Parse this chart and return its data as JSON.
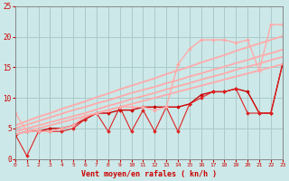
{
  "xlabel": "Vent moyen/en rafales ( kn/h )",
  "xlim": [
    0,
    23
  ],
  "ylim": [
    0,
    25
  ],
  "xticks": [
    0,
    1,
    2,
    3,
    4,
    5,
    6,
    7,
    8,
    9,
    10,
    11,
    12,
    13,
    14,
    15,
    16,
    17,
    18,
    19,
    20,
    21,
    22,
    23
  ],
  "yticks": [
    0,
    5,
    10,
    15,
    20,
    25
  ],
  "background_color": "#cce8e8",
  "grid_color": "#aacaca",
  "series": [
    {
      "x": [
        0,
        1,
        2,
        3,
        4,
        5,
        6,
        7,
        8,
        9,
        10,
        11,
        12,
        13,
        14,
        15,
        16,
        17,
        18,
        19,
        20,
        21,
        22,
        23
      ],
      "y": [
        4.0,
        4.5,
        4.5,
        5.0,
        5.0,
        5.5,
        6.5,
        7.5,
        7.5,
        8.0,
        8.0,
        8.5,
        8.5,
        8.5,
        8.5,
        9.0,
        10.5,
        11.0,
        11.0,
        11.5,
        11.0,
        7.5,
        7.5,
        15.5
      ],
      "color": "#cc0000",
      "lw": 1.0,
      "marker": "D",
      "ms": 1.8
    },
    {
      "x": [
        0,
        1,
        2,
        3,
        4,
        5,
        6,
        7,
        8,
        9,
        10,
        11,
        12,
        13,
        14,
        15,
        16,
        17,
        18,
        19,
        20,
        21,
        22,
        23
      ],
      "y": [
        4.0,
        0.5,
        4.5,
        4.5,
        4.5,
        5.0,
        6.5,
        7.5,
        4.5,
        8.5,
        4.5,
        8.0,
        4.5,
        8.5,
        4.5,
        9.0,
        10.0,
        11.0,
        11.0,
        11.5,
        7.5,
        7.5,
        7.5,
        15.5
      ],
      "color": "#dd2222",
      "lw": 0.8,
      "marker": "D",
      "ms": 1.8
    },
    {
      "x": [
        0,
        1,
        2,
        3,
        4,
        5,
        6,
        7,
        8,
        9,
        10,
        11,
        12,
        13,
        14,
        15,
        16,
        17,
        18,
        19,
        20,
        21,
        22,
        23
      ],
      "y": [
        4.0,
        4.5,
        5.0,
        5.5,
        6.0,
        6.5,
        7.0,
        7.5,
        8.0,
        8.5,
        9.0,
        9.5,
        10.0,
        10.5,
        11.0,
        11.5,
        12.0,
        12.5,
        13.0,
        13.5,
        14.0,
        14.5,
        15.0,
        15.5
      ],
      "color": "#ffaaaa",
      "lw": 1.3,
      "marker": null,
      "ms": 0
    },
    {
      "x": [
        0,
        1,
        2,
        3,
        4,
        5,
        6,
        7,
        8,
        9,
        10,
        11,
        12,
        13,
        14,
        15,
        16,
        17,
        18,
        19,
        20,
        21,
        22,
        23
      ],
      "y": [
        4.5,
        5.0,
        5.5,
        6.0,
        6.5,
        7.0,
        7.5,
        8.1,
        8.7,
        9.2,
        9.8,
        10.3,
        10.8,
        11.4,
        11.9,
        12.4,
        13.0,
        13.5,
        14.0,
        14.6,
        15.1,
        15.6,
        16.2,
        16.7
      ],
      "color": "#ffaaaa",
      "lw": 1.3,
      "marker": null,
      "ms": 0
    },
    {
      "x": [
        0,
        1,
        2,
        3,
        4,
        5,
        6,
        7,
        8,
        9,
        10,
        11,
        12,
        13,
        14,
        15,
        16,
        17,
        18,
        19,
        20,
        21,
        22,
        23
      ],
      "y": [
        5.0,
        5.6,
        6.2,
        6.8,
        7.4,
        8.0,
        8.5,
        9.1,
        9.6,
        10.2,
        10.8,
        11.3,
        11.8,
        12.4,
        12.9,
        13.5,
        14.0,
        14.6,
        15.1,
        15.7,
        16.2,
        16.8,
        17.3,
        17.9
      ],
      "color": "#ffaaaa",
      "lw": 1.3,
      "marker": null,
      "ms": 0
    },
    {
      "x": [
        0,
        1,
        2,
        3,
        4,
        5,
        6,
        7,
        8,
        9,
        10,
        11,
        12,
        13,
        14,
        15,
        16,
        17,
        18,
        19,
        20,
        21,
        22,
        23
      ],
      "y": [
        5.5,
        6.2,
        6.9,
        7.5,
        8.2,
        8.8,
        9.4,
        10.1,
        10.7,
        11.4,
        12.0,
        12.6,
        13.2,
        13.9,
        14.5,
        15.1,
        15.8,
        16.4,
        17.0,
        17.7,
        18.3,
        18.9,
        19.5,
        20.1
      ],
      "color": "#ffaaaa",
      "lw": 1.3,
      "marker": null,
      "ms": 0
    },
    {
      "x": [
        0,
        1,
        2,
        3,
        4,
        5,
        6,
        7,
        8,
        9,
        10,
        11,
        12,
        13,
        14,
        15,
        16,
        17,
        18,
        19,
        20,
        21,
        22,
        23
      ],
      "y": [
        7.5,
        4.5,
        4.5,
        4.5,
        5.0,
        5.5,
        7.0,
        7.5,
        8.0,
        8.5,
        8.5,
        8.5,
        8.0,
        8.5,
        15.5,
        18.0,
        19.5,
        19.5,
        19.5,
        19.0,
        19.5,
        14.5,
        22.0,
        22.0
      ],
      "color": "#ffaaaa",
      "lw": 1.0,
      "marker": "D",
      "ms": 1.8
    }
  ]
}
